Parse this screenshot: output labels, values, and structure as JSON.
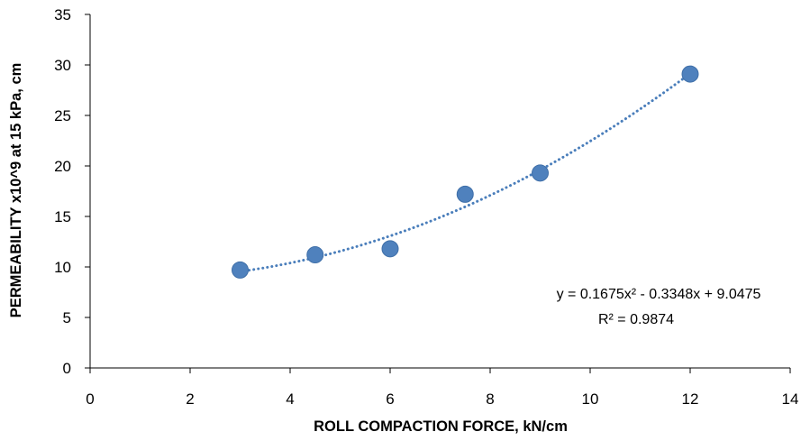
{
  "chart_data": {
    "type": "scatter",
    "xlabel": "ROLL COMPACTION FORCE, kN/cm",
    "ylabel": "PERMEABILITY x10^9 at 15 kPa, cm",
    "xlim": [
      0,
      14
    ],
    "ylim": [
      0,
      35
    ],
    "x_ticks": [
      0,
      2,
      4,
      6,
      8,
      10,
      12,
      14
    ],
    "y_ticks": [
      0,
      5,
      10,
      15,
      20,
      25,
      30,
      35
    ],
    "grid": false,
    "legend": "none",
    "points": [
      {
        "x": 3.0,
        "y": 9.7
      },
      {
        "x": 4.5,
        "y": 11.2
      },
      {
        "x": 6.0,
        "y": 11.8
      },
      {
        "x": 7.5,
        "y": 17.2
      },
      {
        "x": 9.0,
        "y": 19.3
      },
      {
        "x": 12.0,
        "y": 29.1
      }
    ],
    "trendline": {
      "type": "polynomial",
      "coefficients": [
        0.1675,
        -0.3348,
        9.0475
      ],
      "x_range": [
        3,
        12
      ],
      "style": "dotted",
      "equation_label": "y = 0.1675x² - 0.3348x + 9.0475",
      "r2_label": "R² = 0.9874"
    },
    "marker_color": "#4f81bd",
    "marker_edge_color": "#3f6fa8",
    "trendline_color": "#4a7ebb"
  }
}
